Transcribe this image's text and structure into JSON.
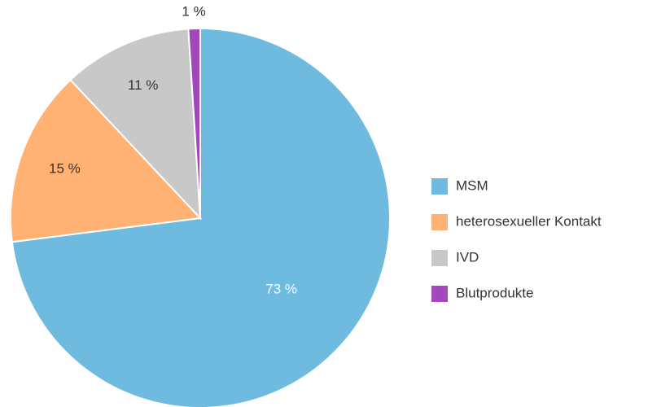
{
  "chart_data": {
    "type": "pie",
    "categories": [
      "MSM",
      "heterosexueller Kontakt",
      "IVD",
      "Blutprodukte"
    ],
    "values": [
      73,
      15,
      11,
      1
    ],
    "value_labels": [
      "73 %",
      "15 %",
      "11 %",
      "1 %"
    ],
    "colors": [
      "#6fbadf",
      "#ffb273",
      "#c8c8c8",
      "#a347bd"
    ]
  }
}
